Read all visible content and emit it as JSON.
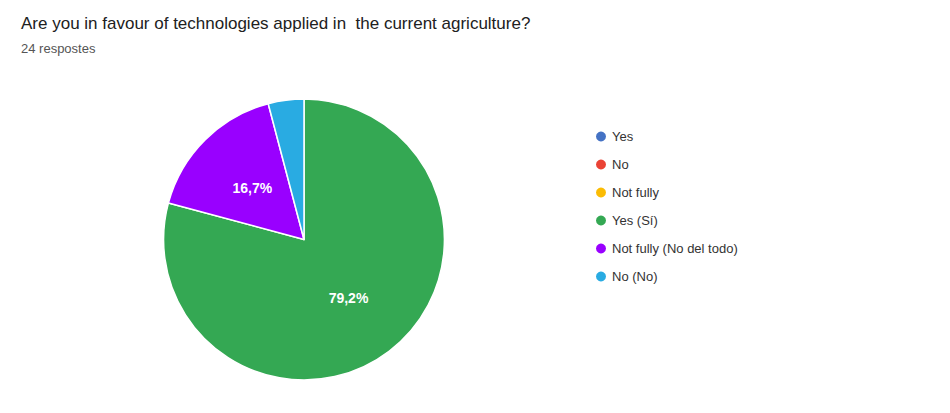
{
  "chart_data": {
    "type": "pie",
    "title": "Are you in favour of technologies applied in  the current agriculture?",
    "subtitle": "24 respostes",
    "categories": [
      "Yes",
      "No",
      "Not fully",
      "Yes (Sí)",
      "Not fully (No del todo)",
      "No (No)"
    ],
    "values": [
      null,
      null,
      null,
      79.2,
      16.7,
      4.1
    ],
    "value_labels": [
      null,
      null,
      null,
      "79,2%",
      "16,7%",
      null
    ],
    "colors": [
      "#4472C4",
      "#EA4335",
      "#FBBC04",
      "#34A853",
      "#9900FF",
      "#29ABE2"
    ],
    "data_labels": true,
    "legend": "right"
  }
}
